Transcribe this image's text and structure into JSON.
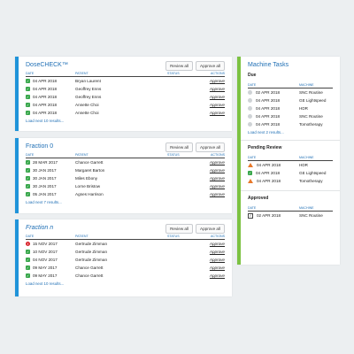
{
  "colors": {
    "accent_blue": "#1f93d9",
    "accent_green": "#7cc242",
    "ok": "#37a64a",
    "error": "#d8262d",
    "warn": "#e8782a"
  },
  "columns": {
    "date": "DATE",
    "patient": "PATIENT",
    "status": "STATUS",
    "actions": "ACTIONS",
    "machine": "MACHINE"
  },
  "buttons": {
    "review_all": "Review all",
    "approve_all": "Approve all"
  },
  "panels": [
    {
      "title": "DoseCHECK™",
      "more": "Load next 10 results...",
      "rows": [
        {
          "icon": "check-icon",
          "date": "04 APR 2018",
          "patient": "Bryan Laurent",
          "action": "Approve"
        },
        {
          "icon": "check-icon",
          "date": "04 APR 2018",
          "patient": "Geoffrey Enns",
          "action": "Approve"
        },
        {
          "icon": "check-icon",
          "date": "04 APR 2018",
          "patient": "Geoffrey Enns",
          "action": "Approve"
        },
        {
          "icon": "check-icon",
          "date": "04 APR 2018",
          "patient": "Annette Choi",
          "action": "Approve"
        },
        {
          "icon": "check-icon",
          "date": "04 APR 2018",
          "patient": "Annette Choi",
          "action": "Approve"
        }
      ]
    },
    {
      "title": "Fraction 0",
      "more": "Load next 7 results...",
      "rows": [
        {
          "icon": "check-icon",
          "date": "28 MAR 2017",
          "patient": "Chance Garrett",
          "action": "Approve"
        },
        {
          "icon": "check-icon",
          "date": "30 JAN 2017",
          "patient": "Margaret Barton",
          "action": "Approve"
        },
        {
          "icon": "check-icon",
          "date": "30 JAN 2017",
          "patient": "Miles Ebony",
          "action": "Approve"
        },
        {
          "icon": "check-icon",
          "date": "30 JAN 2017",
          "patient": "Lorne Bristow",
          "action": "Approve"
        },
        {
          "icon": "check-icon",
          "date": "05 JAN 2017",
          "patient": "Agnes Harrison",
          "action": "Approve"
        }
      ]
    },
    {
      "title": "Fraction n",
      "more": "Load next 10 results...",
      "rows": [
        {
          "icon": "error-icon",
          "date": "15 NOV 2017",
          "patient": "Gertrude Zimman",
          "action": "Approve"
        },
        {
          "icon": "check-icon",
          "date": "10 NOV 2017",
          "patient": "Gertrude Zimman",
          "action": "Approve"
        },
        {
          "icon": "check-icon",
          "date": "04 NOV 2017",
          "patient": "Gertrude Zimman",
          "action": "Approve"
        },
        {
          "icon": "check-icon",
          "date": "09 MAY 2017",
          "patient": "Chance Garrett",
          "action": "Approve"
        },
        {
          "icon": "check-icon",
          "date": "09 MAY 2017",
          "patient": "Chance Garrett",
          "action": "Approve"
        }
      ]
    }
  ],
  "machine_tasks": {
    "title": "Machine Tasks",
    "due": {
      "label": "Due",
      "more": "Load next 2 results...",
      "rows": [
        {
          "icon": "circle-icon",
          "date": "02 APR 2018",
          "machine": "SNC Routine"
        },
        {
          "icon": "circle-icon",
          "date": "04 APR 2018",
          "machine": "GE Lightspeed"
        },
        {
          "icon": "circle-icon",
          "date": "04 APR 2018",
          "machine": "HDR"
        },
        {
          "icon": "circle-icon",
          "date": "04 APR 2018",
          "machine": "SNC Routine"
        },
        {
          "icon": "circle-icon",
          "date": "04 APR 2018",
          "machine": "Tomotherapy"
        }
      ]
    },
    "pending": {
      "label": "Pending Review",
      "rows": [
        {
          "icon": "warning-icon",
          "date": "04 APR 2018",
          "machine": "HDR"
        },
        {
          "icon": "check-icon",
          "date": "04 APR 2018",
          "machine": "GE Lightspeed"
        },
        {
          "icon": "warning-icon",
          "date": "04 APR 2018",
          "machine": "Tomotherapy"
        }
      ]
    },
    "approved": {
      "label": "Approved",
      "rows": [
        {
          "icon": "checkbox-icon",
          "date": "02 APR 2018",
          "machine": "SNC Routine"
        }
      ]
    }
  }
}
